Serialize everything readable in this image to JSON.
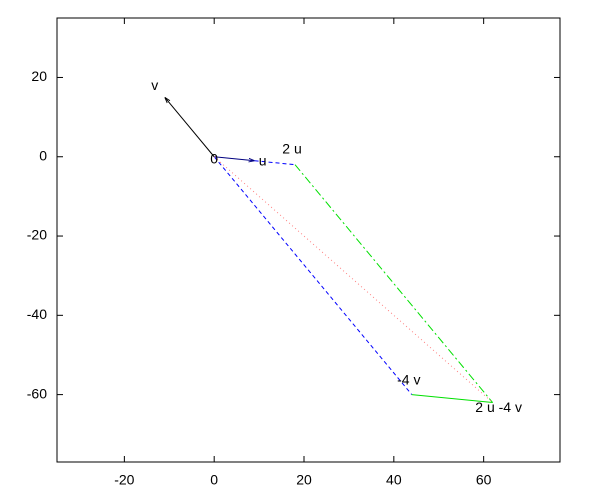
{
  "chart_data": {
    "type": "vector",
    "xlim": [
      -35,
      77
    ],
    "ylim": [
      -77,
      35
    ],
    "xticks": [
      -20,
      0,
      20,
      40,
      60
    ],
    "yticks": [
      20,
      0,
      -20,
      -40,
      -60
    ],
    "points": [
      {
        "label": "0",
        "x": 0,
        "y": 0
      },
      {
        "label": "u",
        "x": 9,
        "y": -1
      },
      {
        "label": "2 u",
        "x": 18,
        "y": -2
      },
      {
        "label": "v",
        "x": -11,
        "y": 15
      },
      {
        "label": "-4 v",
        "x": 44,
        "y": -60
      },
      {
        "label": "2 u -4 v",
        "x": 62,
        "y": -62
      }
    ],
    "segments": [
      {
        "x": [
          0,
          9
        ],
        "y": [
          0,
          -1
        ],
        "color": "#000080",
        "style": "arrow"
      },
      {
        "x": [
          0,
          -11
        ],
        "y": [
          0,
          15
        ],
        "color": "#000000",
        "style": "arrow"
      },
      {
        "x": [
          9,
          18
        ],
        "y": [
          -1,
          -2
        ],
        "color": "#0000ff",
        "style": "dash"
      },
      {
        "x": [
          0,
          44
        ],
        "y": [
          0,
          -60
        ],
        "color": "#0000ff",
        "style": "dash"
      },
      {
        "x": [
          18,
          62
        ],
        "y": [
          -2,
          -62
        ],
        "color": "#00e000",
        "style": "dashdot"
      },
      {
        "x": [
          44,
          62
        ],
        "y": [
          -60,
          -62
        ],
        "color": "#00e000",
        "style": "solid"
      },
      {
        "x": [
          0,
          62
        ],
        "y": [
          0,
          -62
        ],
        "color": "#ff8080",
        "style": "dot"
      }
    ]
  }
}
